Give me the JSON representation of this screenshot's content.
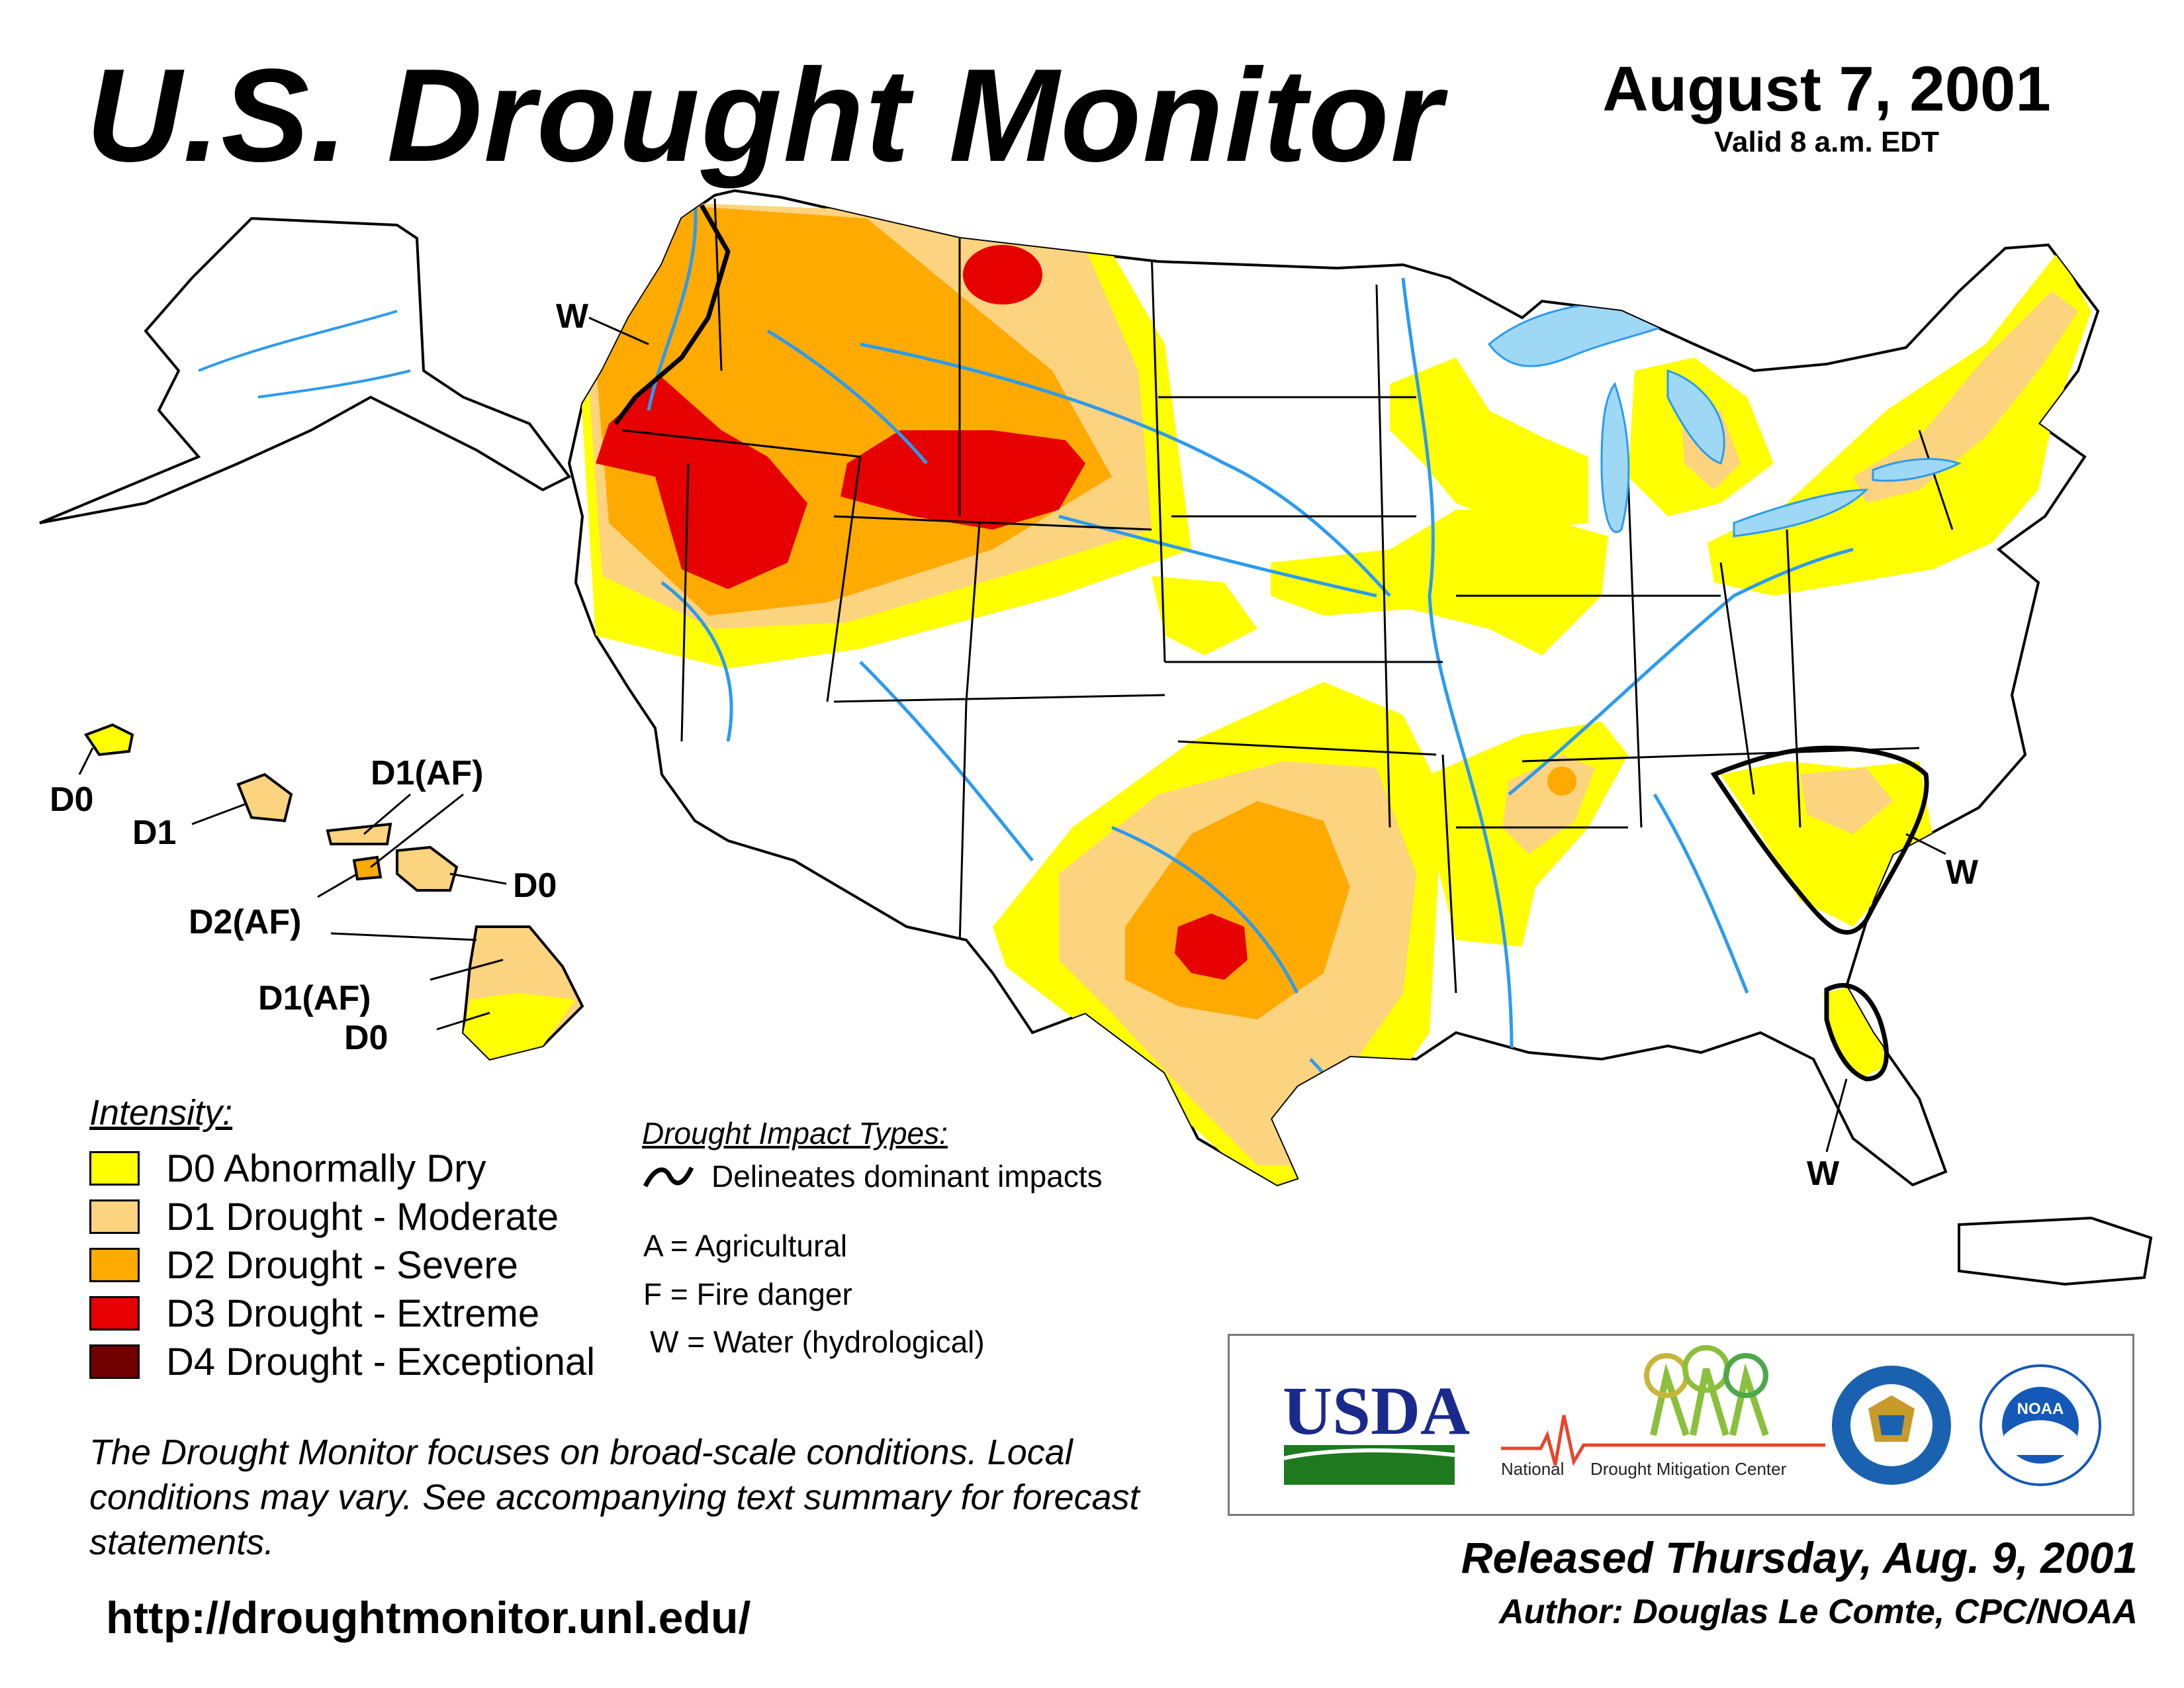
{
  "header": {
    "title": "U.S. Drought Monitor",
    "date": "August 7, 2001",
    "valid": "Valid 8 a.m. EDT"
  },
  "colors": {
    "d0": "#ffff00",
    "d1": "#fcd37f",
    "d2": "#ffaa00",
    "d3": "#e60000",
    "d4": "#730000",
    "water": "#2b9bf0",
    "lake": "#9fd8f5",
    "county": "#9a9a9a",
    "usda_green": "#1f7a1f",
    "usda_blue": "#1a2a8c",
    "doc_blue": "#1a62b0",
    "noaa_blue": "#1458b8"
  },
  "map": {
    "impact_labels": {
      "pacific_nw": "W",
      "carolinas": "W",
      "florida": "W"
    },
    "hawaii_labels": [
      {
        "name": "kauai",
        "text": "D0"
      },
      {
        "name": "oahu",
        "text": "D1"
      },
      {
        "name": "molokai",
        "text": "D1(AF)"
      },
      {
        "name": "maui-west",
        "text": "D0"
      },
      {
        "name": "maui",
        "text": "D2(AF)"
      },
      {
        "name": "big-island-north",
        "text": "D1(AF)"
      },
      {
        "name": "big-island-south",
        "text": "D0"
      }
    ]
  },
  "legend": {
    "heading": "Intensity:",
    "items": [
      {
        "code": "D0",
        "label": "D0 Abnormally Dry"
      },
      {
        "code": "D1",
        "label": "D1 Drought - Moderate"
      },
      {
        "code": "D2",
        "label": "D2 Drought - Severe"
      },
      {
        "code": "D3",
        "label": "D3 Drought - Extreme"
      },
      {
        "code": "D4",
        "label": "D4 Drought - Exceptional"
      }
    ]
  },
  "impacts": {
    "heading": "Drought Impact Types:",
    "line_label": "Delineates dominant impacts",
    "types": [
      "A = Agricultural",
      "F = Fire danger",
      "W = Water (hydrological)"
    ]
  },
  "disclaimer": "The Drought Monitor focuses on broad-scale conditions. Local conditions may vary. See accompanying text summary for forecast statements.",
  "url": "http://droughtmonitor.unl.edu/",
  "logos": {
    "usda": "USDA",
    "ndmc_part1": "National",
    "ndmc_part2": "Drought Mitigation Center",
    "noaa": "NOAA"
  },
  "footer": {
    "released": "Released Thursday, Aug. 9, 2001",
    "author": "Author: Douglas Le Comte, CPC/NOAA"
  }
}
